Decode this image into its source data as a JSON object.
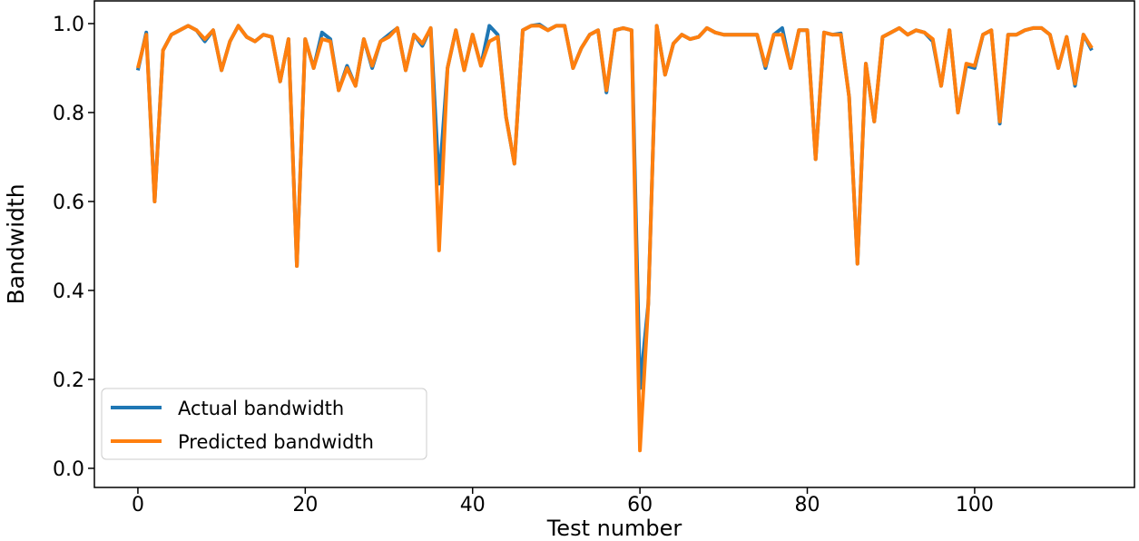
{
  "chart_data": {
    "type": "line",
    "title": "",
    "xlabel": "Test number",
    "ylabel": "Bandwidth",
    "xlim": [
      -5.2,
      119.1
    ],
    "ylim": [
      -0.043,
      1.051
    ],
    "xticks": [
      0,
      20,
      40,
      60,
      80,
      100
    ],
    "yticks": [
      0.0,
      0.2,
      0.4,
      0.6,
      0.8,
      1.0
    ],
    "ytick_labels": [
      "0.0",
      "0.2",
      "0.4",
      "0.6",
      "0.8",
      "1.0"
    ],
    "grid": false,
    "legend_position": "lower-left",
    "series": [
      {
        "name": "Actual bandwidth",
        "color": "#1f77b4",
        "values": [
          0.895,
          0.98,
          0.6,
          0.94,
          0.975,
          0.985,
          0.995,
          0.985,
          0.96,
          0.985,
          0.895,
          0.96,
          0.995,
          0.97,
          0.96,
          0.975,
          0.97,
          0.87,
          0.965,
          0.455,
          0.965,
          0.9,
          0.98,
          0.965,
          0.85,
          0.905,
          0.86,
          0.965,
          0.9,
          0.96,
          0.975,
          0.99,
          0.895,
          0.975,
          0.95,
          0.99,
          0.64,
          0.9,
          0.985,
          0.895,
          0.975,
          0.905,
          0.995,
          0.975,
          0.79,
          0.685,
          0.985,
          0.995,
          0.998,
          0.985,
          0.995,
          0.995,
          0.9,
          0.945,
          0.975,
          0.985,
          0.845,
          0.985,
          0.99,
          0.985,
          0.18,
          0.37,
          0.995,
          0.885,
          0.955,
          0.975,
          0.965,
          0.97,
          0.99,
          0.98,
          0.975,
          0.975,
          0.975,
          0.975,
          0.975,
          0.9,
          0.975,
          0.99,
          0.9,
          0.985,
          0.985,
          0.695,
          0.98,
          0.975,
          0.978,
          0.835,
          0.46,
          0.91,
          0.78,
          0.97,
          0.98,
          0.99,
          0.975,
          0.985,
          0.98,
          0.96,
          0.86,
          0.985,
          0.8,
          0.905,
          0.9,
          0.975,
          0.985,
          0.775,
          0.975,
          0.975,
          0.985,
          0.99,
          0.99,
          0.975,
          0.9,
          0.97,
          0.86,
          0.975,
          0.94
        ]
      },
      {
        "name": "Predicted bandwidth",
        "color": "#ff7f0e",
        "values": [
          0.9,
          0.975,
          0.6,
          0.94,
          0.975,
          0.985,
          0.995,
          0.985,
          0.965,
          0.985,
          0.895,
          0.96,
          0.995,
          0.97,
          0.96,
          0.975,
          0.97,
          0.87,
          0.965,
          0.455,
          0.965,
          0.9,
          0.965,
          0.96,
          0.85,
          0.9,
          0.86,
          0.965,
          0.905,
          0.96,
          0.97,
          0.99,
          0.895,
          0.975,
          0.955,
          0.99,
          0.49,
          0.9,
          0.985,
          0.895,
          0.975,
          0.905,
          0.96,
          0.97,
          0.79,
          0.685,
          0.985,
          0.995,
          0.995,
          0.985,
          0.995,
          0.995,
          0.9,
          0.945,
          0.975,
          0.985,
          0.85,
          0.985,
          0.99,
          0.985,
          0.04,
          0.37,
          0.995,
          0.885,
          0.955,
          0.975,
          0.965,
          0.97,
          0.99,
          0.98,
          0.975,
          0.975,
          0.975,
          0.975,
          0.975,
          0.905,
          0.975,
          0.975,
          0.9,
          0.985,
          0.985,
          0.695,
          0.98,
          0.975,
          0.975,
          0.835,
          0.46,
          0.91,
          0.78,
          0.97,
          0.98,
          0.99,
          0.975,
          0.985,
          0.98,
          0.965,
          0.86,
          0.985,
          0.8,
          0.91,
          0.905,
          0.975,
          0.985,
          0.78,
          0.975,
          0.975,
          0.985,
          0.99,
          0.99,
          0.975,
          0.9,
          0.97,
          0.865,
          0.975,
          0.945
        ]
      }
    ]
  }
}
